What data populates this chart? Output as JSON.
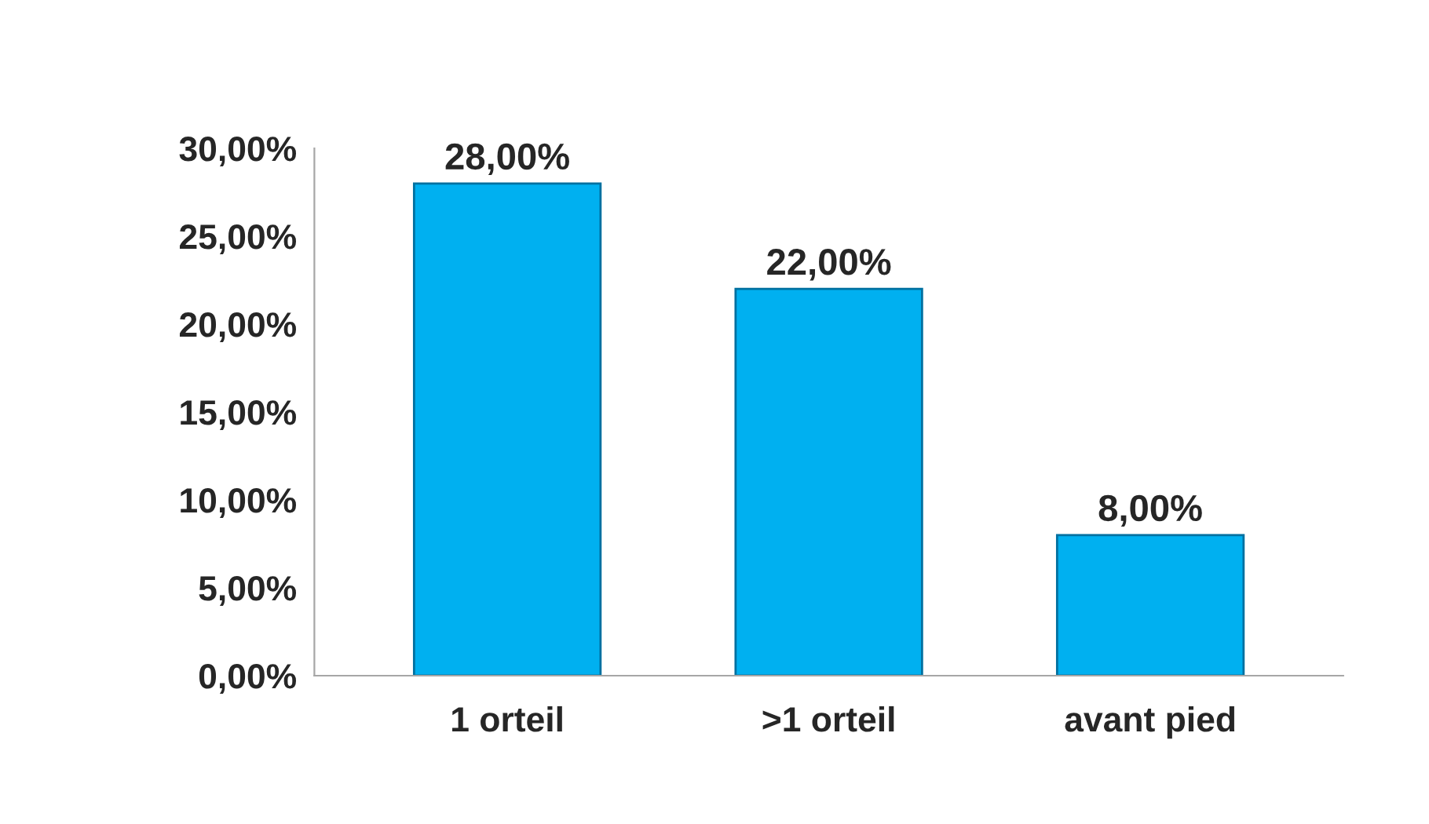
{
  "chart_data": {
    "type": "bar",
    "categories": [
      "1 orteil",
      ">1 orteil",
      "avant pied"
    ],
    "values": [
      28,
      22,
      8
    ],
    "value_labels": [
      "28,00%",
      "22,00%",
      "8,00%"
    ],
    "color": "#00b0f0",
    "ylim": [
      0,
      30
    ],
    "yticks": [
      {
        "value": 0,
        "label": "0,00%"
      },
      {
        "value": 5,
        "label": "5,00%"
      },
      {
        "value": 10,
        "label": "10,00%"
      },
      {
        "value": 15,
        "label": "15,00%"
      },
      {
        "value": 20,
        "label": "20,00%"
      },
      {
        "value": 25,
        "label": "25,00%"
      },
      {
        "value": 30,
        "label": "30,00%"
      }
    ],
    "grid": false
  }
}
